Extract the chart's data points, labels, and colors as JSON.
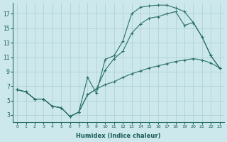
{
  "xlabel": "Humidex (Indice chaleur)",
  "bg_color": "#cce8ec",
  "grid_color": "#aacdd4",
  "line_color": "#2a7068",
  "xlim": [
    -0.5,
    23.5
  ],
  "ylim": [
    2.0,
    18.5
  ],
  "yticks": [
    3,
    5,
    7,
    9,
    11,
    13,
    15,
    17
  ],
  "xticks": [
    0,
    1,
    2,
    3,
    4,
    5,
    6,
    7,
    8,
    9,
    10,
    11,
    12,
    13,
    14,
    15,
    16,
    17,
    18,
    19,
    20,
    21,
    22,
    23
  ],
  "line1_x": [
    0,
    1,
    2,
    3,
    4,
    5,
    6,
    7,
    8,
    9,
    10,
    11,
    12,
    13,
    14,
    15,
    16,
    17,
    18,
    19,
    20,
    21,
    22,
    23
  ],
  "line1_y": [
    6.5,
    6.2,
    5.2,
    5.2,
    4.2,
    4.0,
    2.8,
    3.4,
    8.2,
    6.0,
    10.7,
    11.2,
    13.2,
    17.0,
    17.9,
    18.1,
    18.2,
    18.2,
    17.8,
    17.3,
    15.8,
    13.8,
    11.2,
    9.5
  ],
  "line2_x": [
    0,
    1,
    2,
    3,
    4,
    5,
    6,
    7,
    8,
    9,
    10,
    11,
    12,
    13,
    14,
    15,
    16,
    17,
    18,
    19,
    20,
    21,
    22,
    23
  ],
  "line2_y": [
    6.5,
    6.2,
    5.2,
    5.2,
    4.2,
    4.0,
    2.8,
    3.4,
    5.8,
    6.6,
    9.2,
    10.8,
    11.8,
    14.3,
    15.6,
    16.4,
    16.6,
    17.0,
    17.3,
    15.4,
    15.8,
    13.8,
    11.2,
    9.5
  ],
  "line3_x": [
    0,
    1,
    2,
    3,
    4,
    5,
    6,
    7,
    8,
    9,
    10,
    11,
    12,
    13,
    14,
    15,
    16,
    17,
    18,
    19,
    20,
    21,
    22,
    23
  ],
  "line3_y": [
    6.5,
    6.2,
    5.2,
    5.2,
    4.2,
    4.0,
    2.8,
    3.4,
    5.8,
    6.6,
    7.2,
    7.6,
    8.2,
    8.7,
    9.1,
    9.5,
    9.8,
    10.1,
    10.4,
    10.6,
    10.8,
    10.6,
    10.2,
    9.5
  ]
}
